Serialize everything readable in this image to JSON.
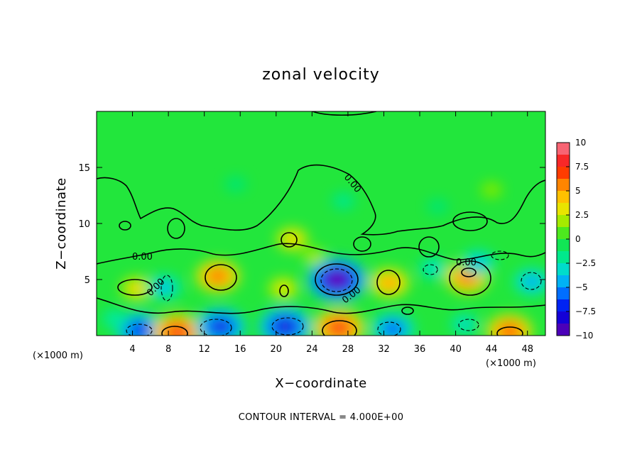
{
  "chart_data": {
    "type": "heatmap",
    "title": "zonal velocity",
    "xlabel": "X−coordinate",
    "ylabel": "Z−coordinate",
    "x_unit_left": "(×1000 m)",
    "x_unit_right": "(×1000 m)",
    "xlim": [
      0,
      50
    ],
    "ylim": [
      0,
      20
    ],
    "xticks": [
      4,
      8,
      12,
      16,
      20,
      24,
      28,
      32,
      36,
      40,
      44,
      48
    ],
    "yticks": [
      5,
      10,
      15
    ],
    "colorbar": {
      "range": [
        -10,
        10
      ],
      "ticks": [
        10,
        7.5,
        5,
        2.5,
        0,
        -2.5,
        -5,
        -7.5,
        -10
      ],
      "tick_labels": [
        "10",
        "7.5",
        "5",
        "2.5",
        "0",
        "−2.5",
        "−5",
        "−7.5",
        "−10"
      ]
    },
    "contour_label": "0.00",
    "contour_interval_text": "CONTOUR INTERVAL = 4.000E+00",
    "features": [
      {
        "x": 13.5,
        "z": 5.3,
        "value": 6.5
      },
      {
        "x": 26.8,
        "z": 5.0,
        "value": -10.0
      },
      {
        "x": 32.6,
        "z": 4.7,
        "value": 5.5
      },
      {
        "x": 41.3,
        "z": 5.2,
        "value": 6.5
      },
      {
        "x": 4.5,
        "z": 4.2,
        "value": 4.0
      },
      {
        "x": 7.5,
        "z": 4.3,
        "value": -4.5
      },
      {
        "x": 4.8,
        "z": 0.5,
        "value": -7.5
      },
      {
        "x": 9.0,
        "z": 0.3,
        "value": 8.0
      },
      {
        "x": 13.8,
        "z": 0.8,
        "value": -8.0
      },
      {
        "x": 21.0,
        "z": 0.8,
        "value": -8.5
      },
      {
        "x": 27.0,
        "z": 0.7,
        "value": 8.0
      },
      {
        "x": 33.0,
        "z": 0.6,
        "value": -6.5
      },
      {
        "x": 46.0,
        "z": 0.4,
        "value": 7.0
      },
      {
        "x": 48.5,
        "z": 4.8,
        "value": -5.0
      },
      {
        "x": 42.5,
        "z": 6.5,
        "value": -4.5
      },
      {
        "x": 37.5,
        "z": 6.0,
        "value": -3.5
      },
      {
        "x": 21.8,
        "z": 8.6,
        "value": 4.0
      },
      {
        "x": 20.8,
        "z": 4.2,
        "value": 3.5
      },
      {
        "x": 24.3,
        "z": 7.0,
        "value": 2.0
      },
      {
        "x": 27.5,
        "z": 12.0,
        "value": -2.0
      },
      {
        "x": 15.5,
        "z": 13.5,
        "value": -1.5
      },
      {
        "x": 38.0,
        "z": 11.5,
        "value": -1.5
      },
      {
        "x": 41.0,
        "z": 1.0,
        "value": -3.0
      },
      {
        "x": 2.0,
        "z": 1.5,
        "value": -2.5
      },
      {
        "x": 44.0,
        "z": 13.0,
        "value": 1.5
      }
    ]
  }
}
